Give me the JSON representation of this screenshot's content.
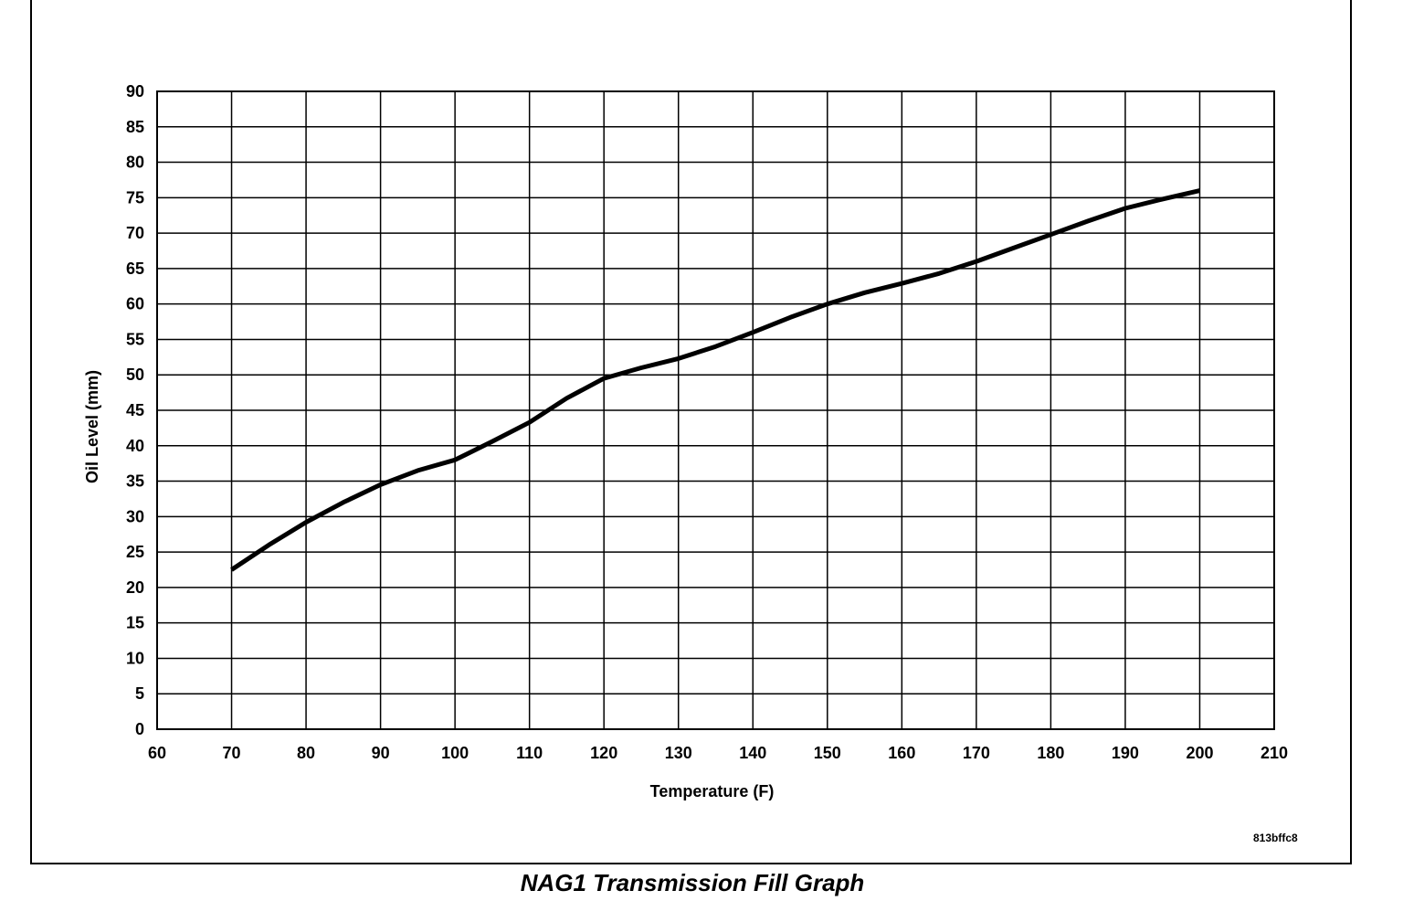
{
  "caption": "NAG1 Transmission Fill Graph",
  "figure_id": "813bffc8",
  "chart_data": {
    "type": "line",
    "title": "NAG1 Transmission Fill Graph",
    "xlabel": "Temperature (F)",
    "ylabel": "Oil Level (mm)",
    "xlim": [
      60,
      210
    ],
    "ylim": [
      0,
      90
    ],
    "x_ticks": [
      60,
      70,
      80,
      90,
      100,
      110,
      120,
      130,
      140,
      150,
      160,
      170,
      180,
      190,
      200,
      210
    ],
    "y_ticks": [
      0,
      5,
      10,
      15,
      20,
      25,
      30,
      35,
      40,
      45,
      50,
      55,
      60,
      65,
      70,
      75,
      80,
      85,
      90
    ],
    "grid": true,
    "legend": "none",
    "line_color": "#000000",
    "series": [
      {
        "x": [
          70,
          75,
          80,
          85,
          90,
          95,
          100,
          105,
          110,
          115,
          120,
          125,
          130,
          135,
          140,
          145,
          150,
          155,
          160,
          165,
          170,
          175,
          180,
          185,
          190,
          195,
          200
        ],
        "values": [
          22.5,
          26,
          29.2,
          32,
          34.5,
          36.5,
          38,
          40.6,
          43.3,
          46.7,
          49.5,
          51,
          52.3,
          54,
          56,
          58.1,
          60,
          61.6,
          62.9,
          64.3,
          66,
          67.9,
          69.8,
          71.7,
          73.5,
          74.8,
          76
        ]
      }
    ]
  }
}
